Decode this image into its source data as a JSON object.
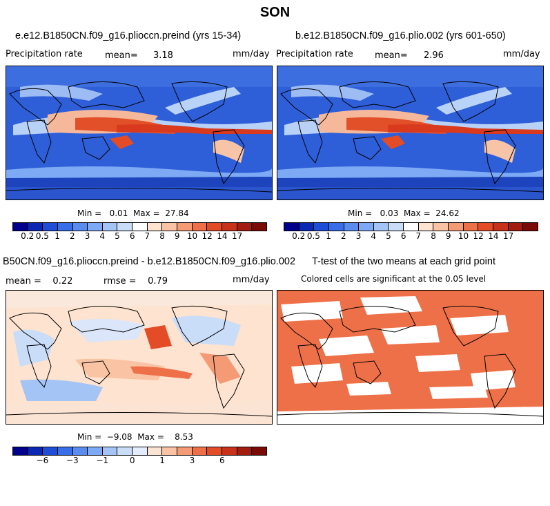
{
  "title": "SON",
  "panels": {
    "top_left": {
      "title": "e.e12.B1850CN.f09_g16.plioccn.preind (yrs 15-34)",
      "left_label": "Precipitation rate",
      "mean_label": "mean=",
      "mean_value": "3.18",
      "units": "mm/day",
      "minmax_text": "Min =   0.01  Max =  27.84"
    },
    "top_right": {
      "title": "b.e12.B1850CN.f09_g16.plio.002 (yrs 601-650)",
      "left_label": "Precipitation rate",
      "mean_label": "mean=",
      "mean_value": "2.96",
      "units": "mm/day",
      "minmax_text": "Min =   0.03  Max =  24.62"
    },
    "bottom_left": {
      "title": "B50CN.f09_g16.plioccn.preind - b.e12.B1850CN.f09_g16.plio.002",
      "mean_text": "mean =    0.22",
      "rmse_text": "rmse =    0.79",
      "units": "mm/day",
      "minmax_text": "Min =  −9.08  Max =    8.53"
    },
    "bottom_right": {
      "title": "T-test of the two means at each grid point",
      "subtitle": "Colored cells are significant at the 0.05 level"
    }
  },
  "colorbars": {
    "precip": {
      "colors": [
        "#00008b",
        "#0a28b4",
        "#1e4ed8",
        "#3a6ee8",
        "#5a8cf0",
        "#7ea9f4",
        "#a4c4f6",
        "#c9dcf8",
        "#ffffff",
        "#fde3d0",
        "#f9c3a4",
        "#f49a75",
        "#ee7048",
        "#e34c26",
        "#c8321a",
        "#a31c10",
        "#7a0a06"
      ],
      "ticks": [
        "0.2",
        "0.5",
        "1",
        "2",
        "3",
        "4",
        "5",
        "6",
        "7",
        "8",
        "9",
        "10",
        "12",
        "14",
        "17"
      ]
    },
    "diff": {
      "colors": [
        "#00008b",
        "#0a28b4",
        "#1e4ed8",
        "#3a6ee8",
        "#5a8cf0",
        "#7ea9f4",
        "#a4c4f6",
        "#c9dcf8",
        "#e3ecfa",
        "#fbe4d4",
        "#f9c3a4",
        "#f49a75",
        "#ee7048",
        "#e34c26",
        "#c8321a",
        "#a31c10",
        "#7a0a06"
      ],
      "ticks": [
        "−6",
        "−3",
        "−1",
        "0",
        "1",
        "3",
        "6"
      ]
    }
  }
}
